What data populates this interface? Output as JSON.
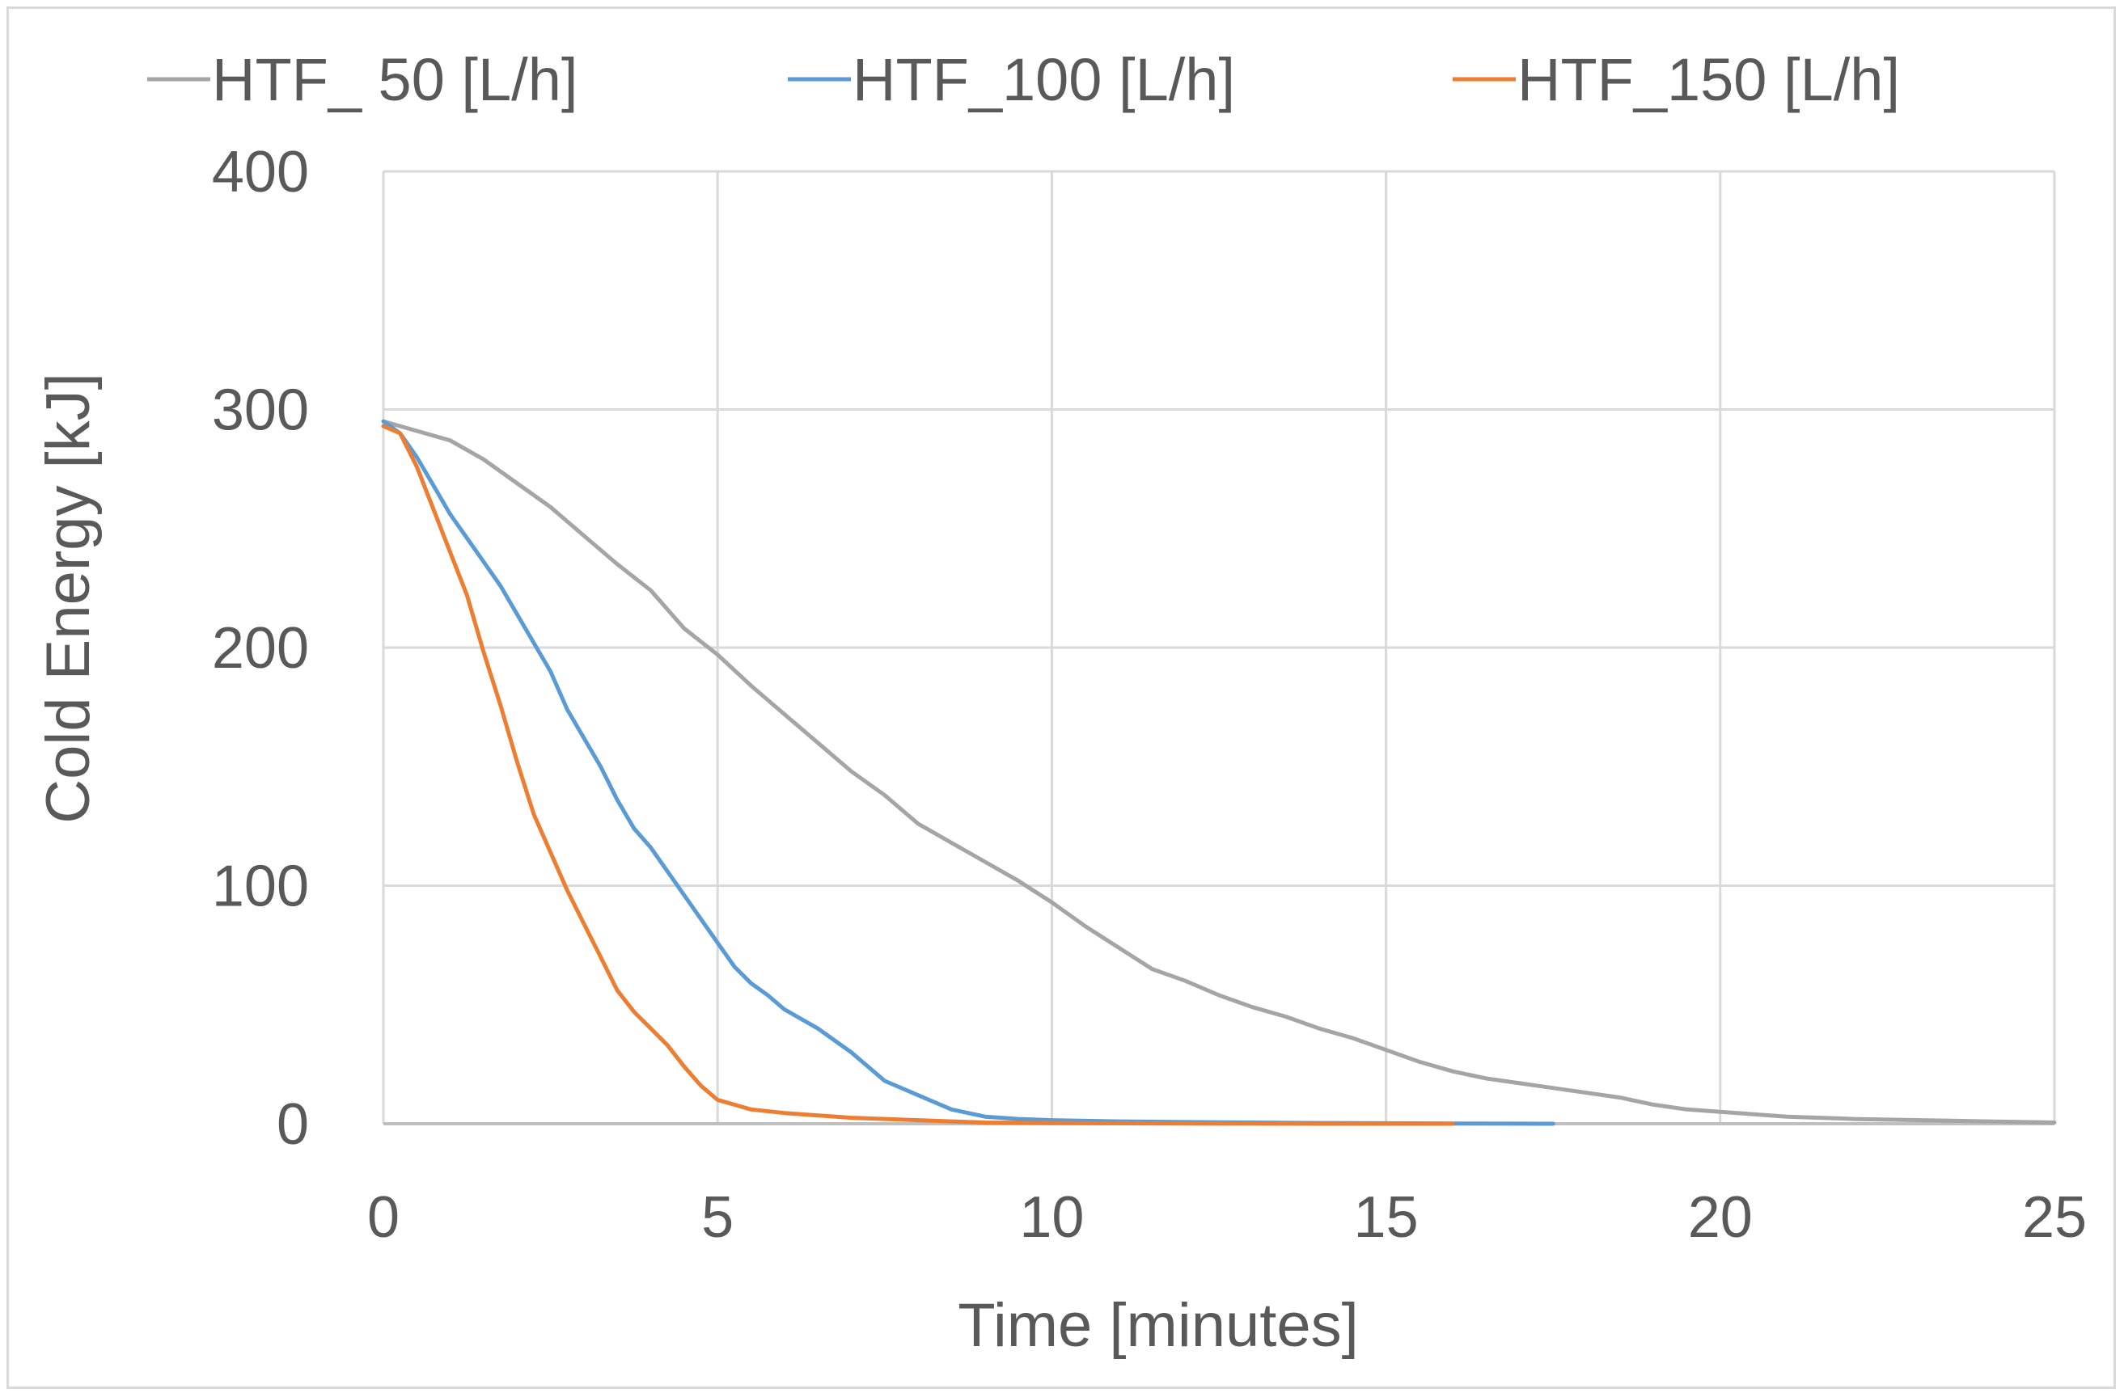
{
  "chart_data": {
    "type": "line",
    "title": "",
    "xlabel": "Time [minutes]",
    "ylabel": "Cold Energy [kJ]",
    "xlim": [
      0,
      25
    ],
    "ylim": [
      0,
      400
    ],
    "xticks": [
      0,
      5,
      10,
      15,
      20,
      25
    ],
    "yticks": [
      0,
      100,
      200,
      300,
      400
    ],
    "grid": true,
    "legend_position": "top",
    "series": [
      {
        "name": "HTF_ 50 [L/h]",
        "color": "#a5a5a5",
        "x": [
          0,
          0.5,
          1,
          1.5,
          2,
          2.5,
          3,
          3.5,
          4,
          4.5,
          5,
          5.5,
          6,
          6.5,
          7,
          7.5,
          8,
          8.5,
          9,
          9.5,
          10,
          10.5,
          11,
          11.5,
          12,
          12.5,
          13,
          13.5,
          14,
          14.5,
          15,
          15.5,
          16,
          16.5,
          17,
          17.5,
          18,
          18.5,
          19,
          19.5,
          20,
          21,
          22,
          23,
          24,
          25
        ],
        "values": [
          295,
          291,
          287,
          279,
          269,
          259,
          247,
          235,
          224,
          208,
          197,
          184,
          172,
          160,
          148,
          138,
          126,
          118,
          110,
          102,
          93,
          83,
          74,
          65,
          60,
          54,
          49,
          45,
          40,
          36,
          31,
          26,
          22,
          19,
          17,
          15,
          13,
          11,
          8,
          6,
          5,
          3,
          2,
          1.5,
          1,
          0.5
        ]
      },
      {
        "name": "HTF_100 [L/h]",
        "color": "#5b9bd5",
        "x": [
          0,
          0.25,
          0.5,
          0.75,
          1,
          1.25,
          1.5,
          1.75,
          2,
          2.25,
          2.5,
          2.75,
          3,
          3.25,
          3.5,
          3.75,
          4,
          4.25,
          4.5,
          4.75,
          5,
          5.25,
          5.5,
          5.75,
          6,
          6.5,
          7,
          7.5,
          8,
          8.5,
          9,
          9.5,
          10,
          11,
          12,
          13,
          14,
          15,
          16,
          17,
          17.5
        ],
        "values": [
          295,
          290,
          280,
          268,
          256,
          246,
          236,
          226,
          214,
          202,
          190,
          174,
          162,
          150,
          136,
          124,
          116,
          106,
          96,
          86,
          76,
          66,
          59,
          54,
          48,
          40,
          30,
          18,
          12,
          6,
          3,
          2,
          1.5,
          1,
          0.7,
          0.5,
          0.3,
          0.2,
          0.1,
          0.05,
          0
        ]
      },
      {
        "name": "HTF_150 [L/h]",
        "color": "#ed7d31",
        "x": [
          0,
          0.25,
          0.5,
          0.75,
          1,
          1.25,
          1.5,
          1.75,
          2,
          2.25,
          2.5,
          2.75,
          3,
          3.25,
          3.5,
          3.75,
          4,
          4.25,
          4.5,
          4.75,
          5,
          5.25,
          5.5,
          6,
          6.5,
          7,
          7.5,
          8,
          8.5,
          9,
          10,
          11,
          12,
          13,
          14,
          15,
          16
        ],
        "values": [
          293,
          290,
          276,
          258,
          240,
          222,
          198,
          176,
          152,
          130,
          114,
          98,
          84,
          70,
          56,
          47,
          40,
          33,
          24,
          16,
          10,
          8,
          6,
          4.5,
          3.5,
          2.5,
          2,
          1.5,
          1,
          0.5,
          0.3,
          0.2,
          0.1,
          0.05,
          0,
          0,
          0
        ]
      }
    ]
  }
}
